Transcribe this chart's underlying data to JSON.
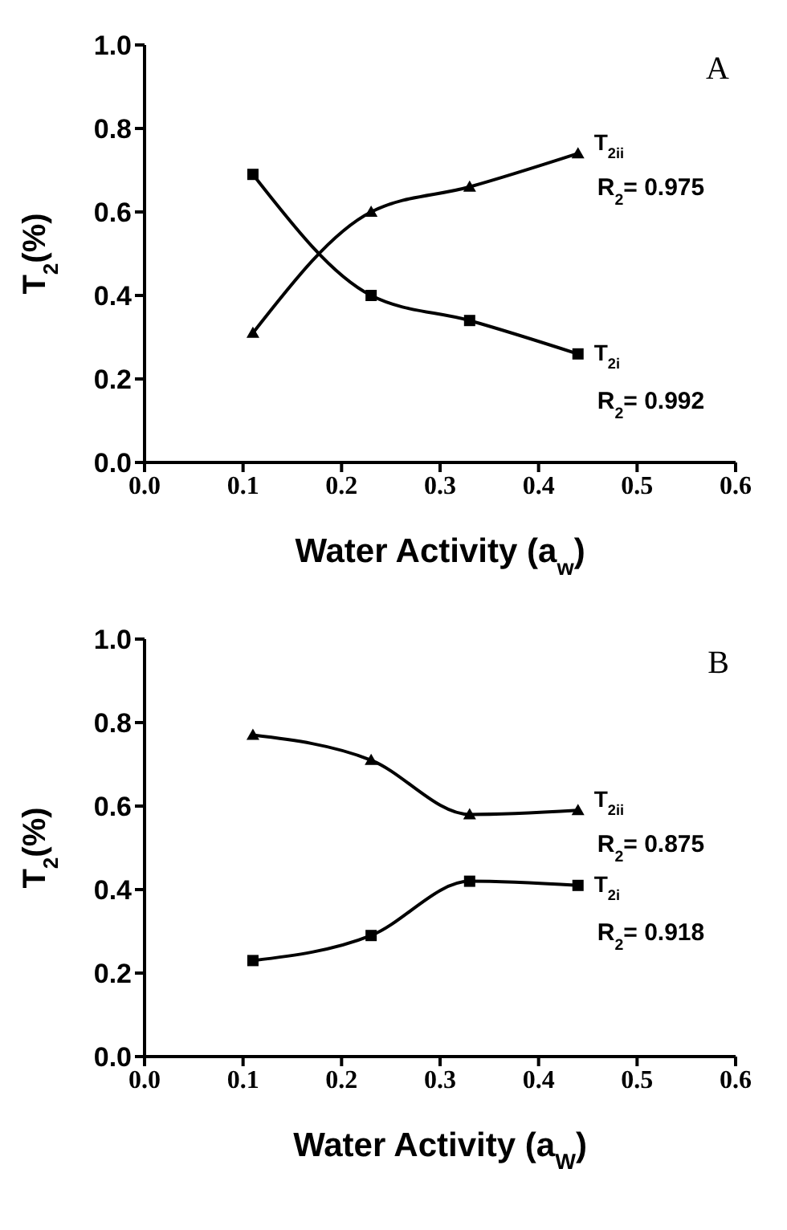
{
  "chart_data": [
    {
      "type": "line",
      "xlabel": "Water Activity (a$_{w}$)",
      "ylabel": "T$_{2}$(%)",
      "x": [
        0.11,
        0.23,
        0.33,
        0.44
      ],
      "series": [
        {
          "name": "T$_{2ii}$",
          "color": "#000000",
          "marker": "triangle",
          "values": [
            0.31,
            0.6,
            0.66,
            0.74
          ]
        },
        {
          "name": "T$_{2i}$",
          "color": "#000000",
          "marker": "square",
          "values": [
            0.69,
            0.4,
            0.34,
            0.26
          ]
        }
      ],
      "xlim": [
        0,
        0.6
      ],
      "ylim": [
        0,
        1
      ],
      "xticks": [
        {
          "value": 0,
          "label": "0.0"
        },
        {
          "value": 0.1,
          "label": "0.1"
        },
        {
          "value": 0.2,
          "label": "0.2"
        },
        {
          "value": 0.3,
          "label": "0.3"
        },
        {
          "value": 0.4,
          "label": "0.4"
        },
        {
          "value": 0.5,
          "label": "0.5"
        },
        {
          "value": 0.6,
          "label": "0.6"
        }
      ],
      "yticks": [
        {
          "value": 0,
          "label": "0.0"
        },
        {
          "value": 0.2,
          "label": "0.2"
        },
        {
          "value": 0.4,
          "label": "0.4"
        },
        {
          "value": 0.6,
          "label": "0.6"
        },
        {
          "value": 0.8,
          "label": "0.8"
        },
        {
          "value": 1,
          "label": "1.0"
        }
      ],
      "grid": false,
      "legend": false,
      "annotations": [
        "A",
        "R$_{2}$= 0.975",
        "R$_{2}$= 0.992"
      ]
    },
    {
      "type": "line",
      "xlabel": "Water Activity (a$_{W}$)",
      "ylabel": "T$_{2}$(%)",
      "x": [
        0.11,
        0.23,
        0.33,
        0.44
      ],
      "series": [
        {
          "name": "T$_{2ii}$",
          "color": "#000000",
          "marker": "triangle",
          "values": [
            0.77,
            0.71,
            0.58,
            0.59
          ]
        },
        {
          "name": "T$_{2i}$",
          "color": "#000000",
          "marker": "square",
          "values": [
            0.23,
            0.29,
            0.42,
            0.41
          ]
        }
      ],
      "xlim": [
        0,
        0.6
      ],
      "ylim": [
        0,
        1
      ],
      "xticks": [
        {
          "value": 0,
          "label": "0.0"
        },
        {
          "value": 0.1,
          "label": "0.1"
        },
        {
          "value": 0.2,
          "label": "0.2"
        },
        {
          "value": 0.3,
          "label": "0.3"
        },
        {
          "value": 0.4,
          "label": "0.4"
        },
        {
          "value": 0.5,
          "label": "0.5"
        },
        {
          "value": 0.6,
          "label": "0.6"
        }
      ],
      "yticks": [
        {
          "value": 0,
          "label": "0.0"
        },
        {
          "value": 0.2,
          "label": "0.2"
        },
        {
          "value": 0.4,
          "label": "0.4"
        },
        {
          "value": 0.6,
          "label": "0.6"
        },
        {
          "value": 0.8,
          "label": "0.8"
        },
        {
          "value": 1,
          "label": "1.0"
        }
      ],
      "grid": false,
      "legend": false,
      "annotations": [
        "B",
        "R$_{2}$= 0.875",
        "R$_{2}$= 0.918"
      ]
    }
  ]
}
